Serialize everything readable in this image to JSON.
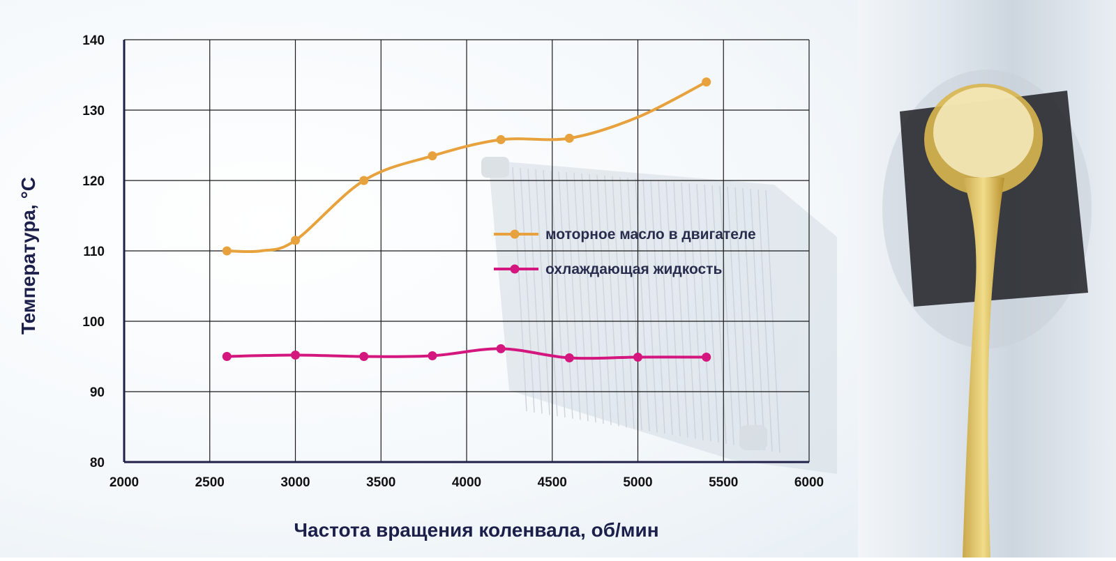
{
  "chart_data": {
    "type": "line",
    "xlabel": "Частота вращения коленвала, об/мин",
    "ylabel": "Температура, °С",
    "xlim": [
      2000,
      6000
    ],
    "ylim": [
      80,
      140
    ],
    "xticks": [
      2000,
      2500,
      3000,
      3500,
      4000,
      4500,
      5000,
      5500,
      6000
    ],
    "yticks": [
      80,
      90,
      100,
      110,
      120,
      130,
      140
    ],
    "grid": true,
    "legend_position": "right",
    "series": [
      {
        "name": "моторное масло в двигателе",
        "color": "#e8a23d",
        "x": [
          2600,
          3000,
          3400,
          3800,
          4200,
          4600,
          5400
        ],
        "y": [
          110,
          111.5,
          120,
          123.5,
          125.8,
          126,
          134
        ],
        "curve_x": [
          2600,
          2800,
          3000,
          3400,
          3800,
          4200,
          4600,
          5000,
          5400
        ],
        "curve_y": [
          110,
          110,
          111.5,
          120,
          123.5,
          125.8,
          126,
          129,
          134
        ]
      },
      {
        "name": "охлаждающая жидкость",
        "color": "#d4177f",
        "x": [
          2600,
          3000,
          3400,
          3800,
          4200,
          4600,
          5000,
          5400
        ],
        "y": [
          95,
          95.2,
          95,
          95.1,
          96.1,
          94.8,
          94.9,
          94.9
        ]
      }
    ]
  }
}
